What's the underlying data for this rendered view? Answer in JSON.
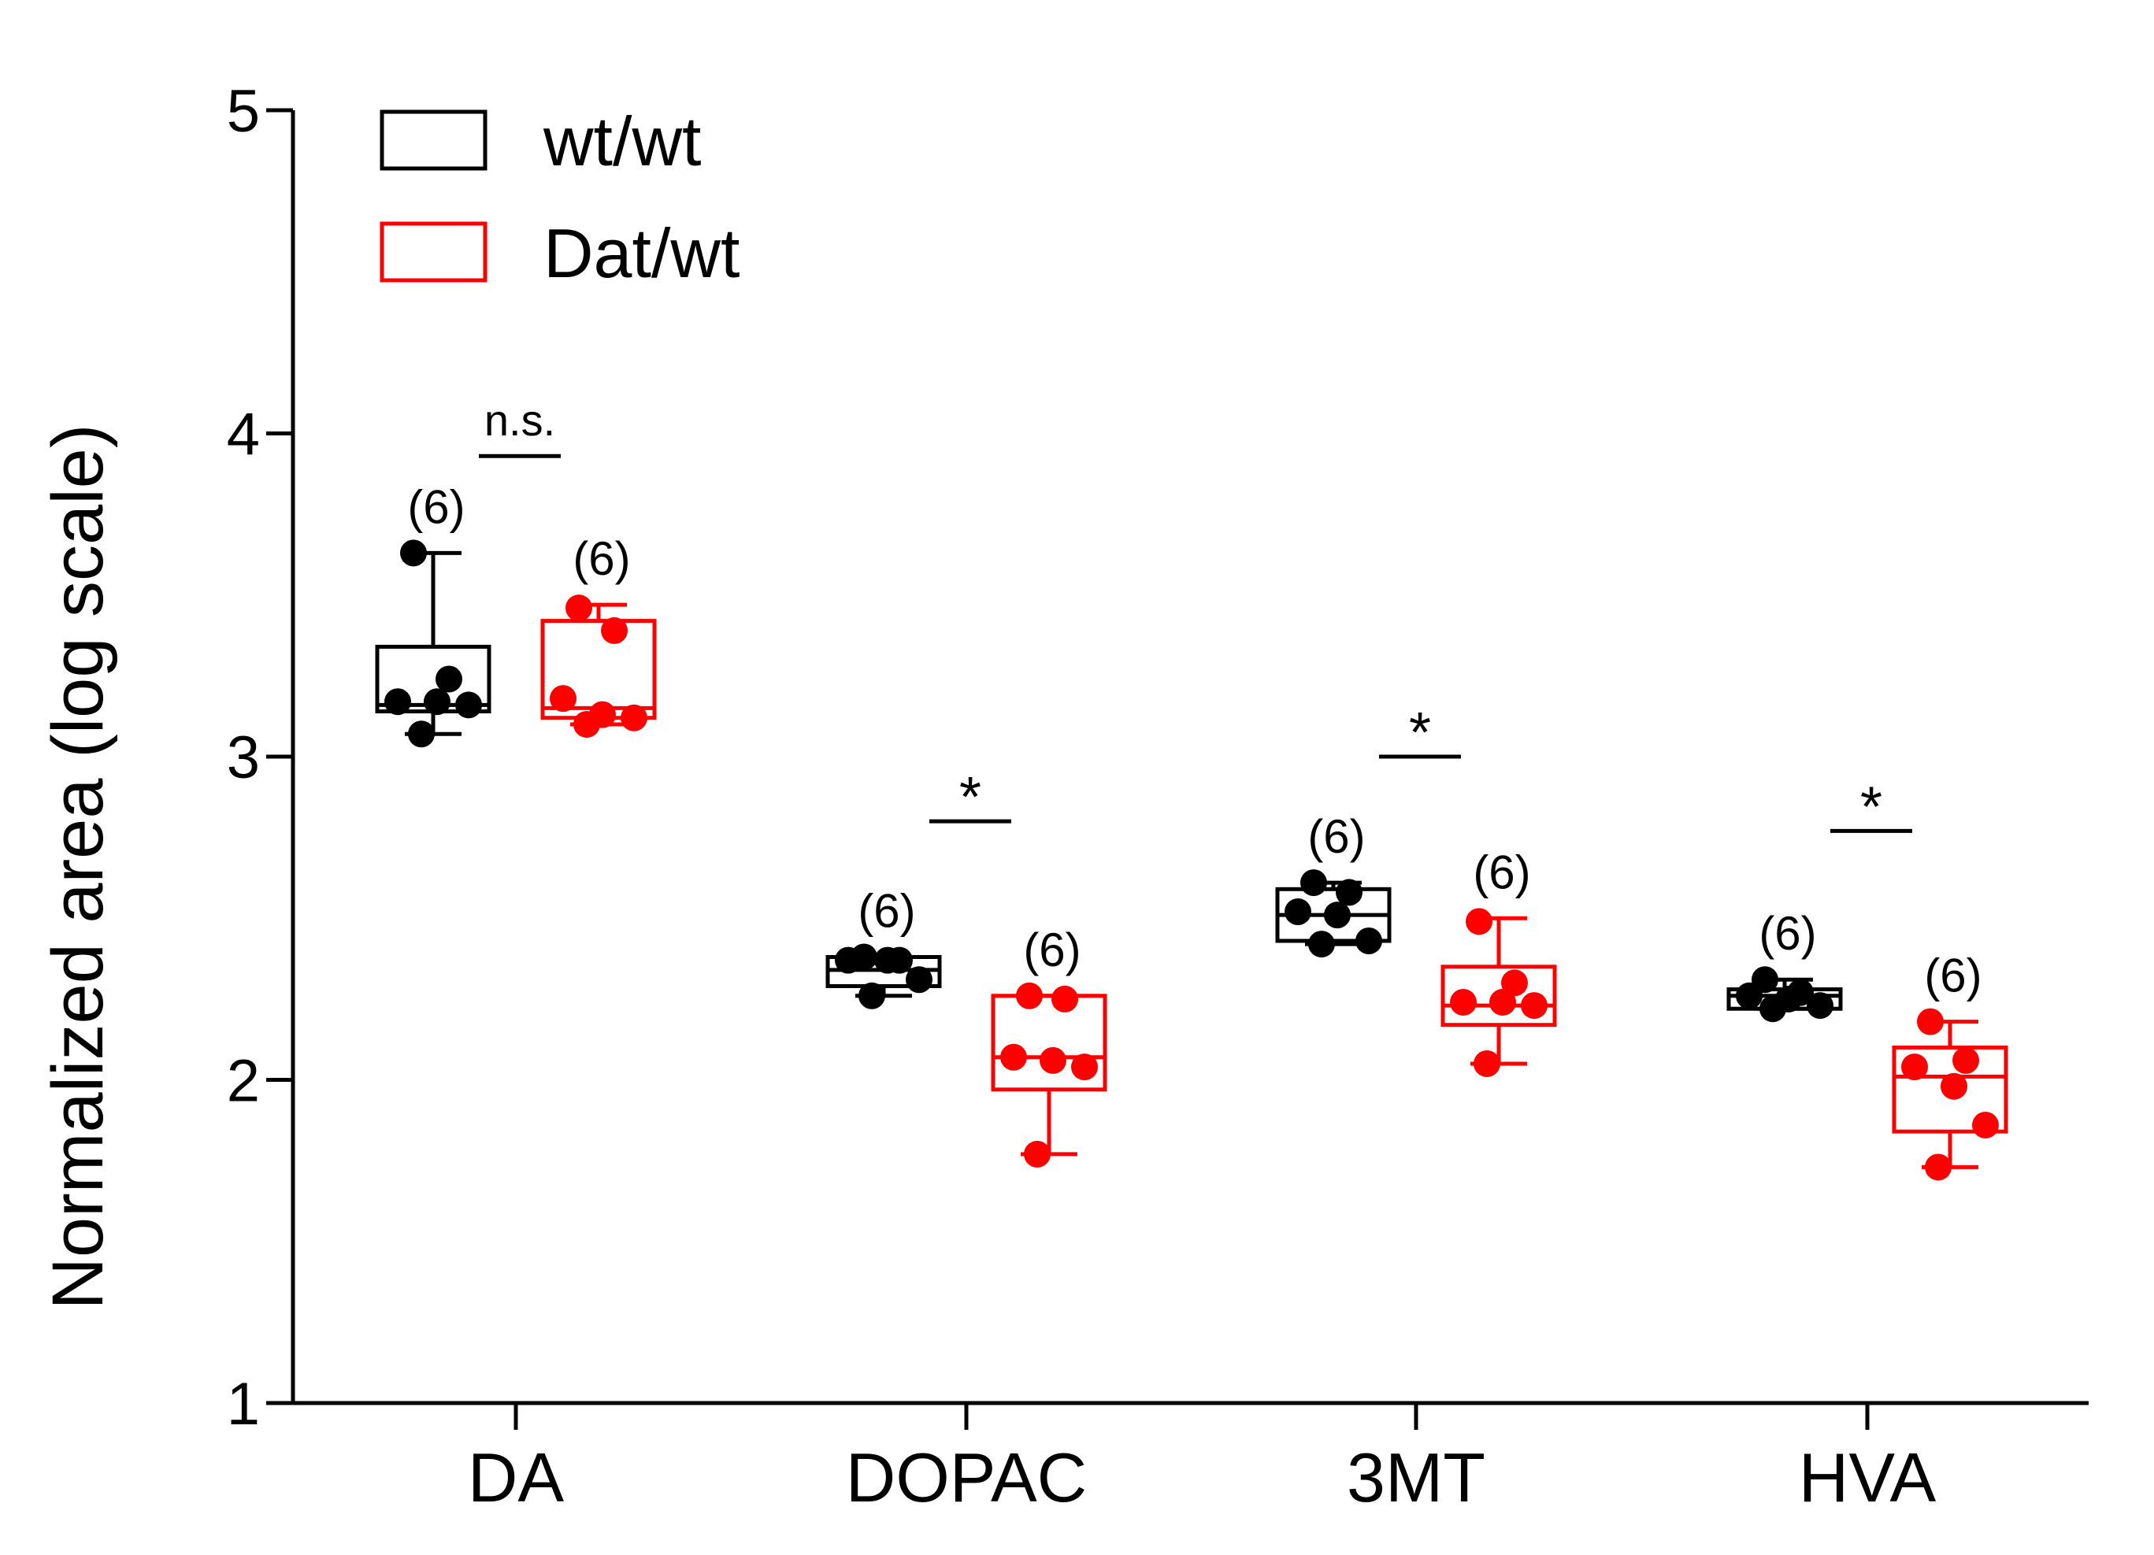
{
  "chart_data": {
    "type": "box",
    "ylabel": "Normalized area (log scale)",
    "ylim": [
      1,
      5
    ],
    "yticks": [
      1,
      2,
      3,
      4,
      5
    ],
    "y_tick_labels": [
      "1",
      "2",
      "3",
      "4",
      "5"
    ],
    "categories": [
      "DA",
      "DOPAC",
      "3MT",
      "HVA"
    ],
    "legend": {
      "placement": "top-left"
    },
    "series": [
      {
        "name": "wt/wt",
        "color": "#000000",
        "boxes": [
          {
            "category": "DA",
            "n_label": "(6)",
            "min": 3.07,
            "q1": 3.14,
            "median": 3.16,
            "q3": 3.34,
            "max": 3.63,
            "points": [
              3.63,
              3.24,
              3.17,
              3.17,
              3.16,
              3.07
            ]
          },
          {
            "category": "DOPAC",
            "n_label": "(6)",
            "min": 2.26,
            "q1": 2.29,
            "median": 2.34,
            "q3": 2.38,
            "max": 2.38,
            "points": [
              2.38,
              2.37,
              2.37,
              2.37,
              2.31,
              2.26
            ]
          },
          {
            "category": "3MT",
            "n_label": "(6)",
            "min": 2.42,
            "q1": 2.43,
            "median": 2.51,
            "q3": 2.59,
            "max": 2.61,
            "points": [
              2.61,
              2.58,
              2.52,
              2.51,
              2.43,
              2.42
            ]
          },
          {
            "category": "HVA",
            "n_label": "(6)",
            "min": 2.22,
            "q1": 2.22,
            "median": 2.26,
            "q3": 2.28,
            "max": 2.31,
            "points": [
              2.31,
              2.27,
              2.26,
              2.25,
              2.23,
              2.22
            ]
          }
        ]
      },
      {
        "name": "Dat/wt",
        "color": "#ff0000",
        "boxes": [
          {
            "category": "DA",
            "n_label": "(6)",
            "min": 3.1,
            "q1": 3.12,
            "median": 3.15,
            "q3": 3.42,
            "max": 3.47,
            "points": [
              3.46,
              3.39,
              3.18,
              3.13,
              3.12,
              3.1
            ]
          },
          {
            "category": "DOPAC",
            "n_label": "(6)",
            "min": 1.77,
            "q1": 1.97,
            "median": 2.07,
            "q3": 2.26,
            "max": 2.26,
            "points": [
              2.26,
              2.25,
              2.07,
              2.06,
              2.04,
              1.77
            ]
          },
          {
            "category": "3MT",
            "n_label": "(6)",
            "min": 2.05,
            "q1": 2.17,
            "median": 2.23,
            "q3": 2.35,
            "max": 2.5,
            "points": [
              2.49,
              2.3,
              2.24,
              2.24,
              2.23,
              2.05
            ]
          },
          {
            "category": "HVA",
            "n_label": "(6)",
            "min": 1.73,
            "q1": 1.84,
            "median": 2.01,
            "q3": 2.1,
            "max": 2.18,
            "points": [
              2.18,
              2.06,
              2.04,
              1.98,
              1.86,
              1.73
            ]
          }
        ]
      }
    ],
    "significance": [
      {
        "category": "DA",
        "label": "n.s.",
        "y": 3.93
      },
      {
        "category": "DOPAC",
        "label": "*",
        "y": 2.8
      },
      {
        "category": "3MT",
        "label": "*",
        "y": 3.0
      },
      {
        "category": "HVA",
        "label": "*",
        "y": 2.77
      }
    ]
  }
}
